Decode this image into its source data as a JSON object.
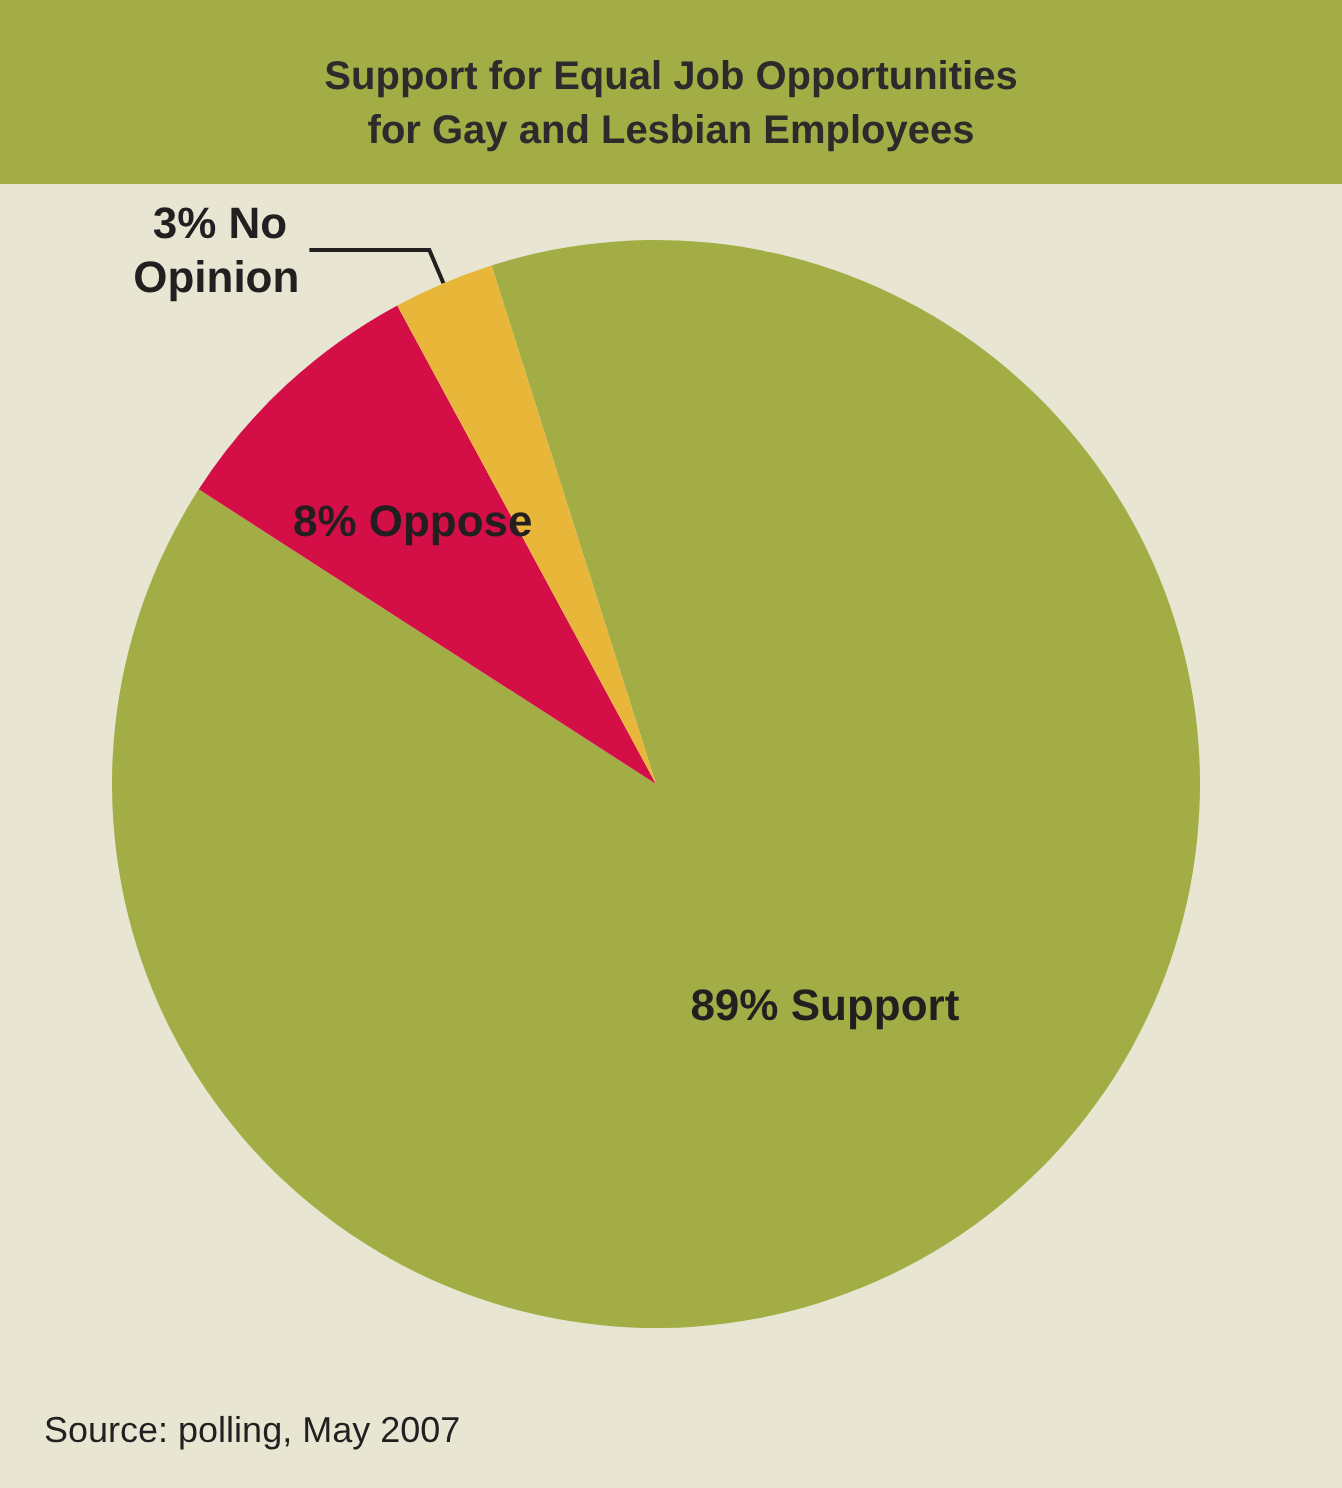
{
  "chart_data": {
    "type": "pie",
    "title": "Support for Equal Job Opportunities\nfor Gay and Lesbian Employees",
    "categories": [
      "Support",
      "Oppose",
      "No Opinion"
    ],
    "values": [
      89,
      8,
      3
    ],
    "colors": [
      "#a2ad45",
      "#d40f47",
      "#e8b73a"
    ],
    "value_labels": [
      "89%",
      "8%",
      "3%"
    ],
    "legend": false,
    "annotations": [
      "Source: polling, May 2007"
    ]
  }
}
